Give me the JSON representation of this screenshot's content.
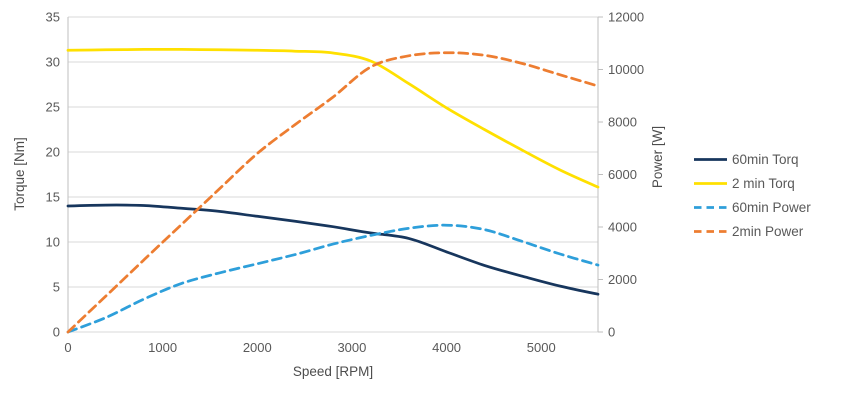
{
  "chart_data": {
    "type": "line",
    "xlabel": "Speed [RPM]",
    "ylabel_left": "Torque [Nm]",
    "ylabel_right": "Power [W]",
    "x_min": 0,
    "x_max": 5600,
    "x_ticks": [
      0,
      1000,
      2000,
      3000,
      4000,
      5000
    ],
    "y_left": {
      "min": 0,
      "max": 35,
      "ticks": [
        0,
        5,
        10,
        15,
        20,
        25,
        30,
        35
      ]
    },
    "y_right": {
      "min": 0,
      "max": 12000,
      "ticks": [
        0,
        2000,
        4000,
        6000,
        8000,
        10000,
        12000
      ]
    },
    "grid": "horizontal",
    "legend_position": "right",
    "x": [
      0,
      400,
      800,
      1200,
      1600,
      2000,
      2400,
      2800,
      3200,
      3600,
      4000,
      4400,
      4800,
      5200,
      5600
    ],
    "series": [
      {
        "name": "60min Torq",
        "axis": "left",
        "style": "solid",
        "color": "#17365D",
        "values": [
          14.0,
          14.1,
          14.05,
          13.75,
          13.4,
          12.85,
          12.3,
          11.7,
          11.0,
          10.4,
          8.9,
          7.4,
          6.2,
          5.1,
          4.2
        ]
      },
      {
        "name": "2 min Torq",
        "axis": "left",
        "style": "solid",
        "color": "#FFE000",
        "values": [
          31.3,
          31.35,
          31.4,
          31.4,
          31.35,
          31.3,
          31.2,
          31.0,
          30.1,
          27.6,
          24.9,
          22.5,
          20.2,
          18.0,
          16.1
        ]
      },
      {
        "name": "60min Power",
        "axis": "right",
        "style": "dashed",
        "color": "#2E9FDA",
        "values": [
          0,
          550,
          1250,
          1850,
          2250,
          2600,
          2950,
          3350,
          3680,
          3950,
          4070,
          3900,
          3450,
          2970,
          2550
        ]
      },
      {
        "name": "2min Power",
        "axis": "right",
        "style": "dashed",
        "color": "#ED7D31",
        "values": [
          0,
          1370,
          2740,
          4100,
          5450,
          6800,
          7900,
          8950,
          10100,
          10520,
          10640,
          10540,
          10230,
          9800,
          9370
        ]
      }
    ],
    "colors": {
      "gridline": "#D9D9D9",
      "axis_line": "#BFBFBF",
      "tick_text": "#595959"
    }
  }
}
